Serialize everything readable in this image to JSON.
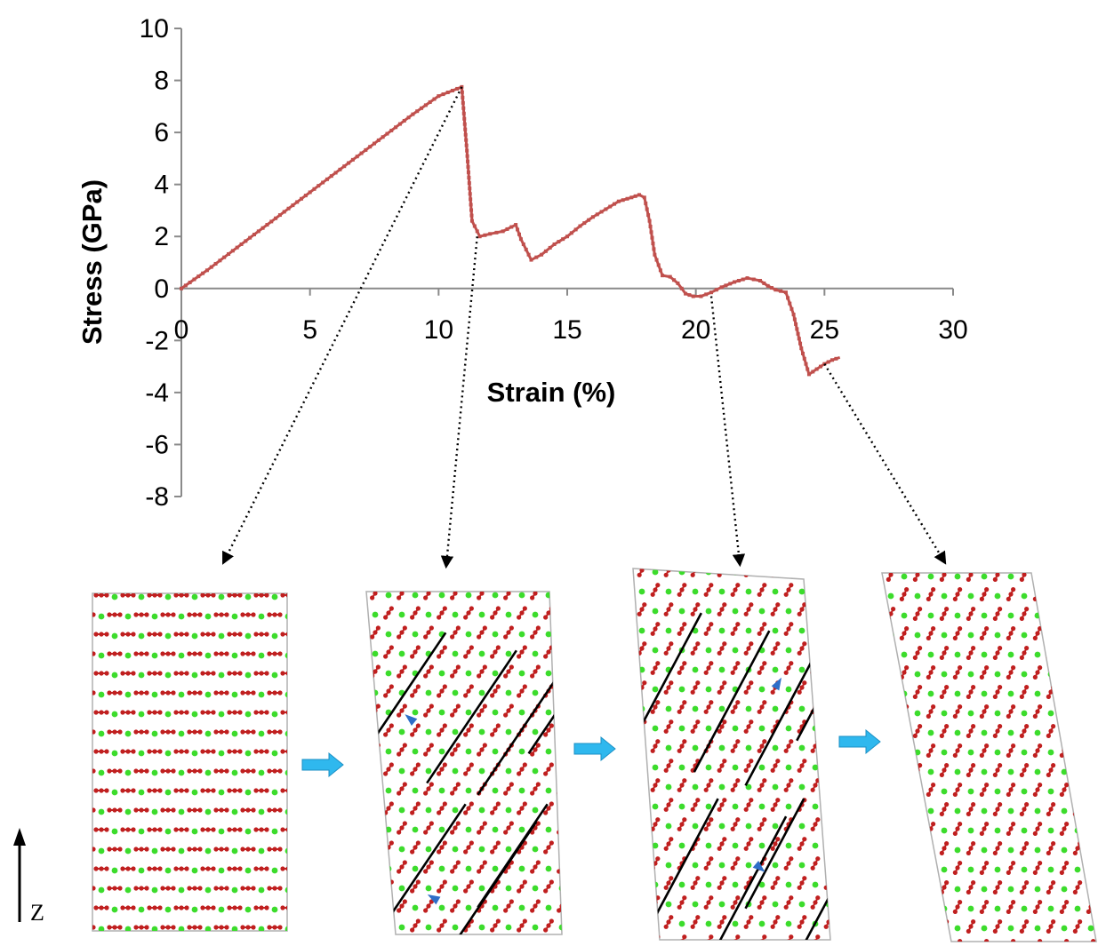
{
  "chart_data": {
    "type": "line",
    "xlabel": "Strain (%)",
    "ylabel": "Stress (GPa)",
    "xlim": [
      0,
      30
    ],
    "ylim": [
      -8,
      10
    ],
    "x_ticks": [
      0,
      5,
      10,
      15,
      20,
      25,
      30
    ],
    "y_ticks": [
      10,
      8,
      6,
      4,
      2,
      0,
      -2,
      -4,
      -6,
      -8
    ],
    "grid": false,
    "legend": "none",
    "line_color": "#c0504d",
    "series": [
      {
        "x": [
          0,
          1,
          2,
          3,
          4,
          5,
          6,
          7,
          8,
          9,
          10,
          10.9,
          11.1,
          11.3,
          11.6,
          12.0,
          12.5,
          13.0,
          13.2,
          13.6,
          14.0,
          14.5,
          15.0,
          15.5,
          16.0,
          16.5,
          17.0,
          17.5,
          17.8,
          18.0,
          18.2,
          18.4,
          18.7,
          19.0,
          19.3,
          19.6,
          19.9,
          20.2,
          20.6,
          21.0,
          21.5,
          22.0,
          22.5,
          22.8,
          23.1,
          23.5,
          23.8,
          24.1,
          24.4,
          24.7,
          25.0,
          25.3,
          25.6
        ],
        "y": [
          0,
          0.7,
          1.45,
          2.2,
          2.95,
          3.7,
          4.45,
          5.2,
          5.95,
          6.7,
          7.4,
          7.75,
          5.3,
          2.6,
          2.0,
          2.1,
          2.2,
          2.45,
          1.9,
          1.1,
          1.3,
          1.7,
          2.0,
          2.4,
          2.75,
          3.05,
          3.35,
          3.5,
          3.6,
          3.5,
          2.6,
          1.3,
          0.5,
          0.45,
          0.2,
          -0.2,
          -0.3,
          -0.3,
          -0.15,
          0.05,
          0.25,
          0.4,
          0.3,
          0.1,
          -0.05,
          -0.15,
          -1.0,
          -2.3,
          -3.3,
          -3.1,
          -2.9,
          -2.75,
          -2.65
        ]
      }
    ]
  },
  "colors": {
    "atom_red": "#c01f1f",
    "atom_green": "#3cdc2c",
    "arrow_blue": "#2fb8ee",
    "slip_line": "#000000",
    "small_arrow": "#2e6ec8",
    "box": "#b0b0b0"
  },
  "annotation": {
    "z_axis_label": "Z"
  }
}
